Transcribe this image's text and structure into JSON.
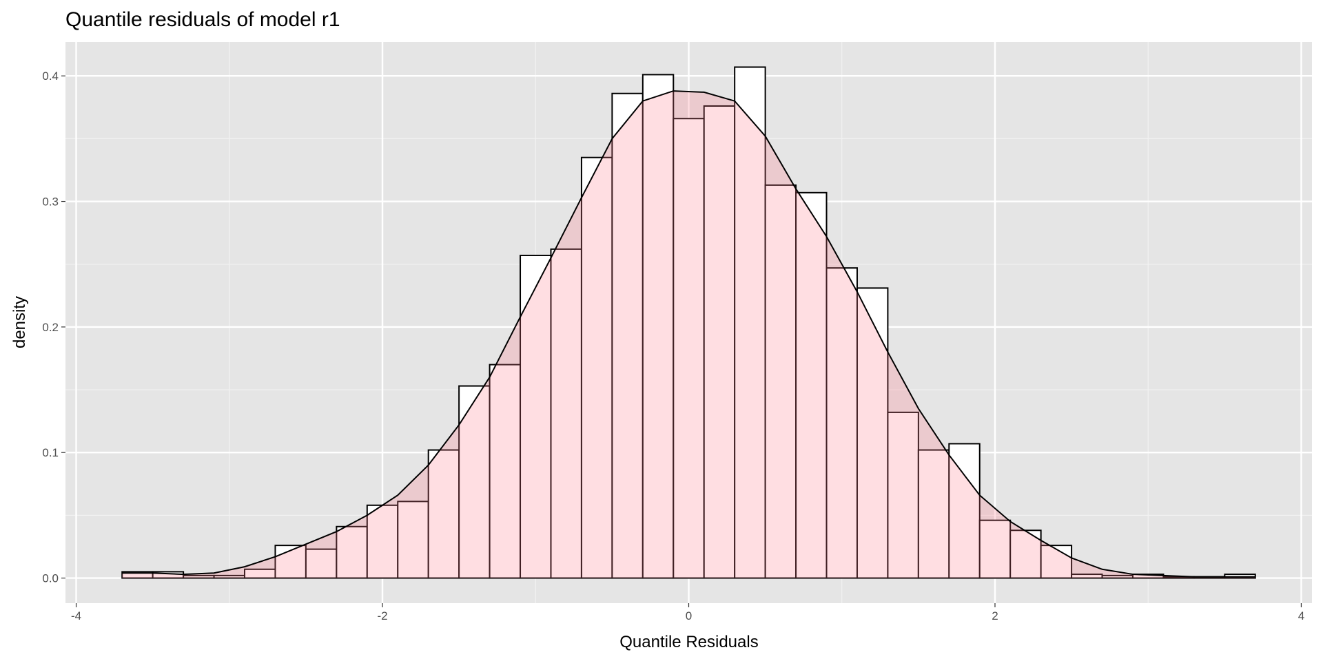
{
  "chart_data": {
    "type": "histogram",
    "title": "Quantile residuals of model r1",
    "x_label": "Quantile Residuals",
    "y_label": "density",
    "bins": [
      -3.7,
      -3.5,
      -3.3,
      -3.1,
      -2.9,
      -2.7,
      -2.5,
      -2.3,
      -2.1,
      -1.9,
      -1.7,
      -1.5,
      -1.3,
      -1.1,
      -0.9,
      -0.7,
      -0.5,
      -0.3,
      -0.1,
      0.1,
      0.3,
      0.5,
      0.7,
      0.9,
      1.1,
      1.3,
      1.5,
      1.7,
      1.9,
      2.1,
      2.3,
      2.5,
      2.7,
      2.9,
      3.1,
      3.3,
      3.5,
      3.7
    ],
    "values": [
      0.005,
      0.005,
      0.002,
      0.002,
      0.007,
      0.026,
      0.023,
      0.041,
      0.058,
      0.061,
      0.102,
      0.153,
      0.17,
      0.257,
      0.262,
      0.335,
      0.386,
      0.401,
      0.366,
      0.376,
      0.407,
      0.313,
      0.307,
      0.247,
      0.231,
      0.132,
      0.102,
      0.107,
      0.046,
      0.038,
      0.026,
      0.003,
      0.002,
      0.003,
      0.001,
      0.001,
      0.003
    ],
    "color": "#ffffff",
    "edge_color": "#000000",
    "density": {
      "x": [
        -3.7,
        -3.5,
        -3.3,
        -3.1,
        -2.9,
        -2.7,
        -2.5,
        -2.3,
        -2.1,
        -1.9,
        -1.7,
        -1.5,
        -1.3,
        -1.1,
        -0.9,
        -0.7,
        -0.5,
        -0.3,
        -0.1,
        0.1,
        0.3,
        0.5,
        0.7,
        0.9,
        1.1,
        1.3,
        1.5,
        1.7,
        1.9,
        2.1,
        2.3,
        2.5,
        2.7,
        2.9,
        3.1,
        3.3,
        3.5,
        3.7
      ],
      "values": [
        0.004,
        0.004,
        0.003,
        0.004,
        0.009,
        0.017,
        0.027,
        0.037,
        0.05,
        0.066,
        0.09,
        0.122,
        0.16,
        0.208,
        0.255,
        0.303,
        0.35,
        0.38,
        0.388,
        0.387,
        0.38,
        0.352,
        0.31,
        0.272,
        0.228,
        0.18,
        0.135,
        0.098,
        0.066,
        0.045,
        0.03,
        0.016,
        0.007,
        0.003,
        0.002,
        0.001,
        0.001,
        0.001
      ],
      "color": "#000000",
      "fill": "#ff7a8c"
    },
    "xlim": [
      -4.07,
      4.07
    ],
    "ylim": [
      -0.02,
      0.427
    ],
    "xticks": [
      -4,
      -2,
      0,
      2,
      4
    ],
    "yticks": [
      {
        "value": 0,
        "label": "0.0"
      },
      0.1,
      0.2,
      0.3,
      0.4
    ],
    "xminor": [
      -3,
      -1,
      1,
      3
    ],
    "yminor": [
      0.05,
      0.15,
      0.25,
      0.35
    ],
    "grid": true
  }
}
